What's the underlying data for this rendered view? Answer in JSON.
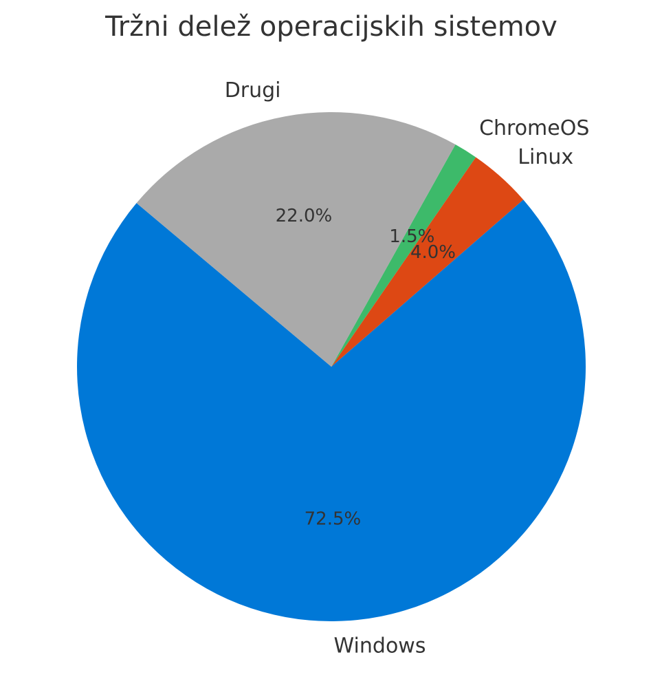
{
  "chart_data": {
    "type": "pie",
    "title": "Tržni delež operacijskih sistemov",
    "categories": [
      "Windows",
      "Linux",
      "ChromeOS",
      "Drugi"
    ],
    "values": [
      72.5,
      4.0,
      1.5,
      22.0
    ],
    "value_labels": [
      "72.5%",
      "4.0%",
      "1.5%",
      "22.0%"
    ],
    "colors": [
      "#0078d7",
      "#dd4814",
      "#3dba6a",
      "#aaaaaa"
    ],
    "startangle": 140
  }
}
